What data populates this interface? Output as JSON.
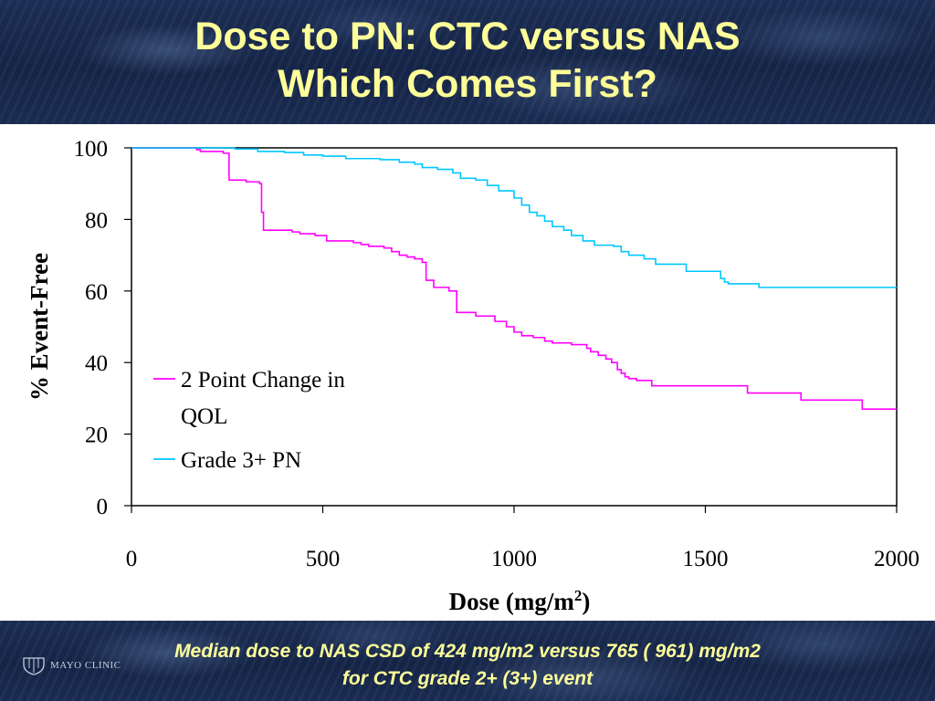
{
  "slide": {
    "title_line1": "Dose to PN: CTC versus NAS",
    "title_line2": "Which Comes First?",
    "footer_line1": "Median dose to NAS CSD of 424 mg/m2 versus  765 ( 961) mg/m2",
    "footer_line2": "for CTC grade 2+ (3+) event",
    "logo_text": "MAYO CLINIC",
    "logo_icon": "mayo-shield-icon"
  },
  "colors": {
    "title": "#ffff99",
    "band": "#1b2d55",
    "series_qol": "#ff00ff",
    "series_pn": "#00c8ff"
  },
  "chart_data": {
    "type": "line",
    "step": true,
    "xlabel": "Dose (mg/m",
    "xlabel_sup": "2",
    "xlabel_end": ")",
    "ylabel": "% Event-Free",
    "xlim": [
      0,
      2000
    ],
    "ylim": [
      0,
      100
    ],
    "xticks": [
      0,
      500,
      1000,
      1500,
      2000
    ],
    "yticks": [
      0,
      20,
      40,
      60,
      80,
      100
    ],
    "grid": false,
    "legend": {
      "placement": "center-left",
      "entries": [
        {
          "line1": "2 Point Change in",
          "line2": "QOL"
        },
        {
          "line1": "Grade 3+ PN",
          "line2": ""
        }
      ]
    },
    "series": [
      {
        "name": "2 Point Change in QOL",
        "color": "#ff00ff",
        "points": [
          [
            0,
            100
          ],
          [
            80,
            100
          ],
          [
            170,
            99.5
          ],
          [
            180,
            99
          ],
          [
            240,
            98.5
          ],
          [
            255,
            91
          ],
          [
            300,
            90.5
          ],
          [
            335,
            90
          ],
          [
            340,
            82
          ],
          [
            345,
            77
          ],
          [
            420,
            76.5
          ],
          [
            440,
            76
          ],
          [
            480,
            75.5
          ],
          [
            510,
            74
          ],
          [
            580,
            73.5
          ],
          [
            600,
            73
          ],
          [
            620,
            72.5
          ],
          [
            660,
            72
          ],
          [
            680,
            71
          ],
          [
            700,
            70
          ],
          [
            720,
            69.5
          ],
          [
            740,
            69
          ],
          [
            760,
            68
          ],
          [
            770,
            63
          ],
          [
            790,
            61
          ],
          [
            830,
            60
          ],
          [
            850,
            54
          ],
          [
            900,
            53
          ],
          [
            950,
            51.5
          ],
          [
            980,
            50
          ],
          [
            1000,
            48.5
          ],
          [
            1020,
            47.5
          ],
          [
            1050,
            47
          ],
          [
            1080,
            46
          ],
          [
            1100,
            45.5
          ],
          [
            1150,
            45
          ],
          [
            1190,
            44
          ],
          [
            1200,
            43
          ],
          [
            1220,
            42
          ],
          [
            1240,
            41
          ],
          [
            1255,
            40
          ],
          [
            1270,
            38
          ],
          [
            1280,
            37
          ],
          [
            1290,
            36
          ],
          [
            1300,
            35.5
          ],
          [
            1320,
            35
          ],
          [
            1360,
            33.5
          ],
          [
            1600,
            33.5
          ],
          [
            1610,
            31.5
          ],
          [
            1740,
            31.5
          ],
          [
            1750,
            29.5
          ],
          [
            1900,
            29.5
          ],
          [
            1910,
            27
          ],
          [
            2000,
            27
          ]
        ]
      },
      {
        "name": "Grade 3+ PN",
        "color": "#00c8ff",
        "points": [
          [
            0,
            100
          ],
          [
            160,
            100
          ],
          [
            270,
            99.7
          ],
          [
            330,
            99
          ],
          [
            400,
            98.7
          ],
          [
            450,
            98
          ],
          [
            500,
            97.7
          ],
          [
            560,
            97
          ],
          [
            650,
            96.7
          ],
          [
            700,
            96
          ],
          [
            740,
            95.5
          ],
          [
            760,
            94.5
          ],
          [
            800,
            94
          ],
          [
            840,
            93
          ],
          [
            860,
            91.5
          ],
          [
            900,
            91
          ],
          [
            930,
            89.5
          ],
          [
            960,
            88
          ],
          [
            1000,
            86
          ],
          [
            1020,
            84
          ],
          [
            1040,
            82
          ],
          [
            1060,
            81
          ],
          [
            1080,
            79.5
          ],
          [
            1100,
            78
          ],
          [
            1130,
            77
          ],
          [
            1150,
            75.5
          ],
          [
            1180,
            74
          ],
          [
            1210,
            72.8
          ],
          [
            1260,
            72.5
          ],
          [
            1280,
            71
          ],
          [
            1300,
            70
          ],
          [
            1340,
            69
          ],
          [
            1370,
            67.5
          ],
          [
            1440,
            67.5
          ],
          [
            1450,
            65.5
          ],
          [
            1520,
            65.5
          ],
          [
            1540,
            63.5
          ],
          [
            1550,
            62.5
          ],
          [
            1560,
            62
          ],
          [
            1630,
            62
          ],
          [
            1640,
            61
          ],
          [
            2000,
            61
          ]
        ]
      }
    ]
  }
}
